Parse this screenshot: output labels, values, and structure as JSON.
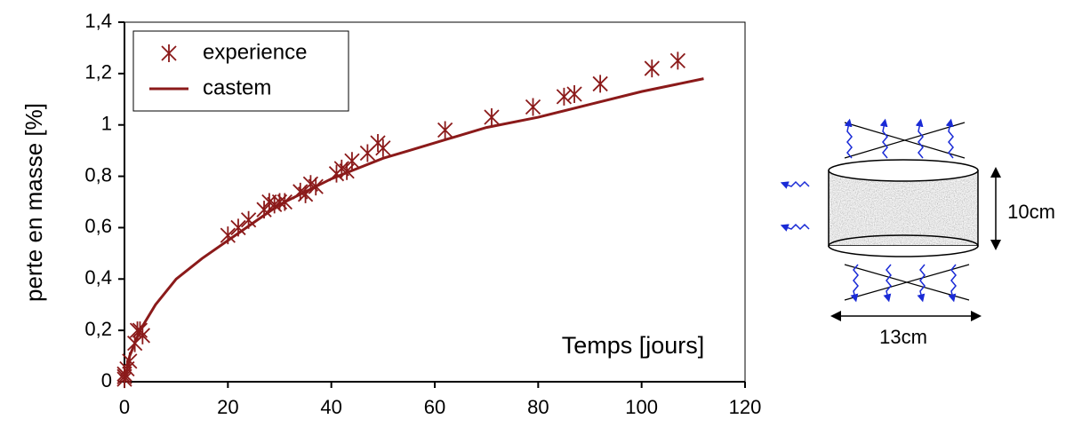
{
  "chart_data": {
    "type": "line",
    "x_annotation": "Temps [jours]",
    "ylabel": "perte en masse [%]",
    "xlim": [
      0,
      120
    ],
    "xticks": [
      0,
      20,
      40,
      60,
      80,
      100,
      120
    ],
    "ylim": [
      0,
      1.4
    ],
    "yticks": [
      0,
      {
        "value": 0.2,
        "label": "0,2"
      },
      {
        "value": 0.4,
        "label": "0,4"
      },
      {
        "value": 0.6,
        "label": "0,6"
      },
      {
        "value": 0.8,
        "label": "0,8"
      },
      1,
      {
        "value": 1.2,
        "label": "1,2"
      },
      {
        "value": 1.4,
        "label": "1,4"
      }
    ],
    "legend": "upper left",
    "series": [
      {
        "name": "experience",
        "color": "#8b1a1a",
        "marker": "asterisk",
        "x": [
          0,
          0,
          0,
          0.5,
          1,
          2,
          2.5,
          3,
          3.5,
          20,
          22,
          24,
          27,
          28,
          29,
          30,
          31,
          34,
          35,
          36,
          37,
          41,
          42,
          43,
          44,
          47,
          49,
          50,
          62,
          71,
          79,
          85,
          87,
          92,
          102,
          107
        ],
        "values": [
          0.01,
          0.02,
          0.03,
          0.05,
          0.08,
          0.15,
          0.2,
          0.2,
          0.18,
          0.57,
          0.6,
          0.63,
          0.67,
          0.7,
          0.69,
          0.7,
          0.7,
          0.74,
          0.73,
          0.77,
          0.76,
          0.81,
          0.83,
          0.82,
          0.86,
          0.89,
          0.93,
          0.91,
          0.98,
          1.03,
          1.07,
          1.11,
          1.12,
          1.16,
          1.22,
          1.25
        ]
      },
      {
        "name": "castem",
        "color": "#8b1a1a",
        "marker": "none",
        "x": [
          0,
          1,
          3,
          6,
          10,
          15,
          20,
          25,
          30,
          35,
          40,
          45,
          50,
          55,
          60,
          70,
          80,
          90,
          100,
          112
        ],
        "values": [
          0,
          0.1,
          0.2,
          0.3,
          0.4,
          0.48,
          0.55,
          0.62,
          0.69,
          0.74,
          0.79,
          0.83,
          0.87,
          0.9,
          0.93,
          0.99,
          1.03,
          1.08,
          1.13,
          1.18
        ]
      }
    ]
  },
  "diagram": {
    "height_label": "10cm",
    "width_label": "13cm"
  }
}
